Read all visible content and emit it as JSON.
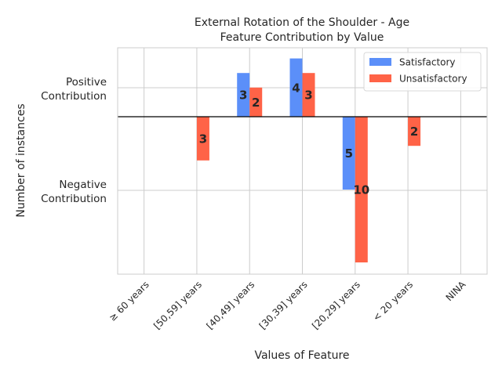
{
  "chart_data": {
    "type": "bar",
    "title": "External Rotation of the Shoulder - Age",
    "subtitle": "Feature Contribution by Value",
    "xlabel": "Values of Feature",
    "ylabel": "Number of instances",
    "ytick_labels": [
      "Positive Contribution",
      "Negative Contribution"
    ],
    "categories": [
      "≥ 60 years",
      "[50,59] years",
      "[40,49] years",
      "[30,39] years",
      "[20,29] years",
      "< 20 years",
      "NINA"
    ],
    "series": [
      {
        "name": "Satisfactory",
        "color": "#5b8ff9",
        "values": [
          0,
          0,
          3,
          4,
          -5,
          0,
          0
        ]
      },
      {
        "name": "Unsatisfactory",
        "color": "#ff6347",
        "values": [
          0,
          -3,
          2,
          3,
          -10,
          -2,
          0
        ]
      }
    ],
    "data_labels": {
      "Satisfactory": [
        "",
        "",
        "3",
        "4",
        "5",
        "",
        ""
      ],
      "Unsatisfactory": [
        "",
        "3",
        "2",
        "3",
        "10",
        "2",
        ""
      ]
    },
    "ylim": [
      -10.7,
      4.8
    ],
    "grid": true,
    "legend_position": "top-right"
  }
}
